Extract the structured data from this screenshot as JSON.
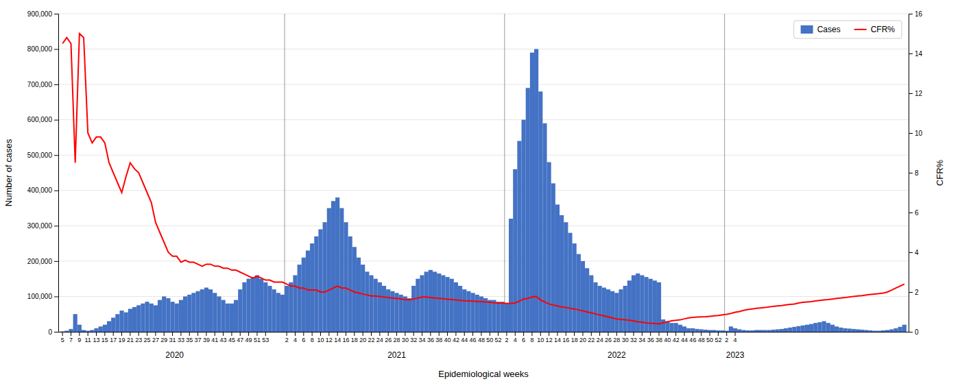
{
  "chart_data": {
    "type": "bar",
    "xlabel": "Epidemiological weeks",
    "ylabel": "Number of cases",
    "y2label": "CFR%",
    "ylim": [
      0,
      900000
    ],
    "yticks": [
      0,
      {
        "value": 100000,
        "label": "100,000"
      },
      {
        "value": 200000,
        "label": "200,000"
      },
      {
        "value": 300000,
        "label": "300,000"
      },
      {
        "value": 400000,
        "label": "400,000"
      },
      {
        "value": 500000,
        "label": "500,000"
      },
      {
        "value": 600000,
        "label": "600,000"
      },
      {
        "value": 700000,
        "label": "700,000"
      },
      {
        "value": 800000,
        "label": "800,000"
      },
      {
        "value": 900000,
        "label": "900,000"
      }
    ],
    "y2lim": [
      0,
      16
    ],
    "y2ticks": [
      0,
      2,
      4,
      6,
      8,
      10,
      12,
      14,
      16
    ],
    "grid": true,
    "legend": "upper right",
    "annotations": [
      {
        "text": "2020",
        "weeks": 53
      },
      {
        "text": "2021",
        "weeks": 52
      },
      {
        "text": "2022",
        "weeks": 52
      },
      {
        "text": "2023",
        "weeks": 4
      }
    ],
    "categories": [
      "5",
      null,
      "7",
      null,
      "9",
      null,
      "11",
      null,
      "13",
      null,
      "15",
      null,
      "17",
      null,
      "19",
      null,
      "21",
      null,
      "23",
      null,
      "25",
      null,
      "27",
      null,
      "29",
      null,
      "31",
      null,
      "33",
      null,
      "35",
      null,
      "37",
      null,
      "39",
      null,
      "41",
      null,
      "43",
      null,
      "45",
      null,
      "47",
      null,
      "49",
      null,
      "51",
      null,
      "53",
      null,
      null,
      null,
      null,
      "2",
      null,
      "4",
      null,
      "6",
      null,
      "8",
      null,
      "10",
      null,
      "12",
      null,
      "14",
      null,
      "16",
      null,
      "18",
      null,
      "20",
      null,
      "22",
      null,
      "24",
      null,
      "26",
      null,
      "28",
      null,
      "30",
      null,
      "32",
      null,
      "34",
      null,
      "36",
      null,
      "38",
      null,
      "40",
      null,
      "42",
      null,
      "44",
      null,
      "46",
      null,
      "48",
      null,
      "50",
      null,
      "52",
      null,
      "2",
      null,
      "4",
      null,
      "6",
      null,
      "8",
      null,
      "10",
      null,
      "12",
      null,
      "14",
      null,
      "16",
      null,
      "18",
      null,
      "20",
      null,
      "22",
      null,
      "24",
      null,
      "26",
      null,
      "28",
      null,
      "30",
      null,
      "32",
      null,
      "34",
      null,
      "36",
      null,
      "38",
      null,
      "40",
      null,
      "42",
      null,
      "44",
      null,
      "46",
      null,
      "48",
      null,
      "50",
      null,
      "52",
      null,
      "2",
      null,
      "4",
      null,
      null,
      null,
      null,
      null,
      null,
      null,
      null,
      null,
      null,
      null,
      null,
      null,
      null,
      null,
      null,
      null,
      null,
      null,
      null,
      null,
      null,
      null,
      null,
      null,
      null,
      null,
      null,
      null,
      null,
      null,
      null,
      null,
      null,
      null,
      null,
      null,
      null,
      null,
      null
    ],
    "series": [
      {
        "name": "Cases",
        "type": "bar",
        "color": "#4472C4",
        "values": [
          1000,
          3000,
          8000,
          50000,
          20000,
          5000,
          3000,
          5000,
          10000,
          15000,
          20000,
          30000,
          40000,
          50000,
          60000,
          55000,
          65000,
          70000,
          75000,
          80000,
          85000,
          80000,
          75000,
          90000,
          100000,
          95000,
          85000,
          80000,
          90000,
          100000,
          105000,
          110000,
          115000,
          120000,
          125000,
          120000,
          110000,
          100000,
          90000,
          80000,
          80000,
          90000,
          120000,
          140000,
          150000,
          155000,
          160000,
          150000,
          140000,
          130000,
          120000,
          110000,
          105000,
          130000,
          140000,
          160000,
          190000,
          210000,
          230000,
          250000,
          270000,
          290000,
          310000,
          350000,
          370000,
          380000,
          350000,
          310000,
          270000,
          240000,
          210000,
          190000,
          170000,
          160000,
          150000,
          140000,
          130000,
          120000,
          115000,
          110000,
          105000,
          100000,
          95000,
          130000,
          150000,
          160000,
          170000,
          175000,
          170000,
          165000,
          160000,
          155000,
          150000,
          140000,
          130000,
          120000,
          115000,
          110000,
          105000,
          100000,
          95000,
          90000,
          90000,
          85000,
          85000,
          80000,
          320000,
          460000,
          540000,
          600000,
          690000,
          790000,
          800000,
          680000,
          590000,
          480000,
          420000,
          360000,
          330000,
          310000,
          280000,
          250000,
          220000,
          200000,
          180000,
          160000,
          140000,
          130000,
          125000,
          120000,
          115000,
          110000,
          120000,
          130000,
          145000,
          160000,
          165000,
          160000,
          155000,
          150000,
          145000,
          140000,
          35000,
          30000,
          25000,
          25000,
          20000,
          15000,
          10000,
          10000,
          8000,
          7000,
          6000,
          5000,
          5000,
          4000,
          4000,
          3000,
          15000,
          10000,
          7000,
          5000,
          4000,
          4000,
          5000,
          5000,
          5000,
          5000,
          6000,
          7000,
          8000,
          10000,
          12000,
          14000,
          16000,
          18000,
          20000,
          22000,
          25000,
          27000,
          30000,
          25000,
          20000,
          15000,
          12000,
          10000,
          9000,
          8000,
          7000,
          6000,
          5000,
          4000,
          3000,
          3000,
          4000,
          5000,
          7000,
          10000,
          14000,
          20000
        ]
      },
      {
        "name": "CFR%",
        "type": "line",
        "color": "#FF0000",
        "axis": "y2",
        "values": [
          14.5,
          14.8,
          14.5,
          8.5,
          15.0,
          14.8,
          10.0,
          9.5,
          9.8,
          9.8,
          9.5,
          8.5,
          8.0,
          7.5,
          7.0,
          7.8,
          8.5,
          8.2,
          8.0,
          7.5,
          7.0,
          6.5,
          5.5,
          5.0,
          4.5,
          4.0,
          3.8,
          3.8,
          3.5,
          3.6,
          3.5,
          3.5,
          3.4,
          3.3,
          3.4,
          3.4,
          3.3,
          3.3,
          3.2,
          3.2,
          3.1,
          3.1,
          3.0,
          2.9,
          2.8,
          2.7,
          2.8,
          2.7,
          2.6,
          2.6,
          2.5,
          2.5,
          2.5,
          2.4,
          2.3,
          2.3,
          2.2,
          2.2,
          2.1,
          2.1,
          2.1,
          2.0,
          2.0,
          2.1,
          2.2,
          2.3,
          2.2,
          2.2,
          2.1,
          2.0,
          1.95,
          1.9,
          1.85,
          1.8,
          1.8,
          1.78,
          1.75,
          1.72,
          1.7,
          1.68,
          1.65,
          1.62,
          1.6,
          1.65,
          1.7,
          1.75,
          1.75,
          1.72,
          1.7,
          1.68,
          1.66,
          1.64,
          1.62,
          1.6,
          1.58,
          1.56,
          1.55,
          1.54,
          1.53,
          1.52,
          1.5,
          1.48,
          1.46,
          1.45,
          1.44,
          1.43,
          1.42,
          1.45,
          1.55,
          1.65,
          1.68,
          1.75,
          1.78,
          1.6,
          1.5,
          1.4,
          1.35,
          1.3,
          1.25,
          1.22,
          1.18,
          1.15,
          1.1,
          1.05,
          1.0,
          0.95,
          0.9,
          0.85,
          0.8,
          0.75,
          0.7,
          0.65,
          0.62,
          0.6,
          0.58,
          0.55,
          0.5,
          0.48,
          0.45,
          0.43,
          0.42,
          0.4,
          0.45,
          0.5,
          0.55,
          0.58,
          0.6,
          0.65,
          0.7,
          0.72,
          0.74,
          0.75,
          0.76,
          0.78,
          0.8,
          0.82,
          0.85,
          0.88,
          0.92,
          0.98,
          1.02,
          1.08,
          1.12,
          1.15,
          1.18,
          1.2,
          1.22,
          1.25,
          1.28,
          1.3,
          1.32,
          1.35,
          1.38,
          1.4,
          1.45,
          1.48,
          1.5,
          1.52,
          1.55,
          1.58,
          1.6,
          1.62,
          1.65,
          1.68,
          1.7,
          1.72,
          1.75,
          1.78,
          1.8,
          1.82,
          1.85,
          1.88,
          1.9,
          1.92,
          1.95,
          2.0,
          2.1,
          2.2,
          2.3,
          2.4
        ]
      }
    ]
  }
}
